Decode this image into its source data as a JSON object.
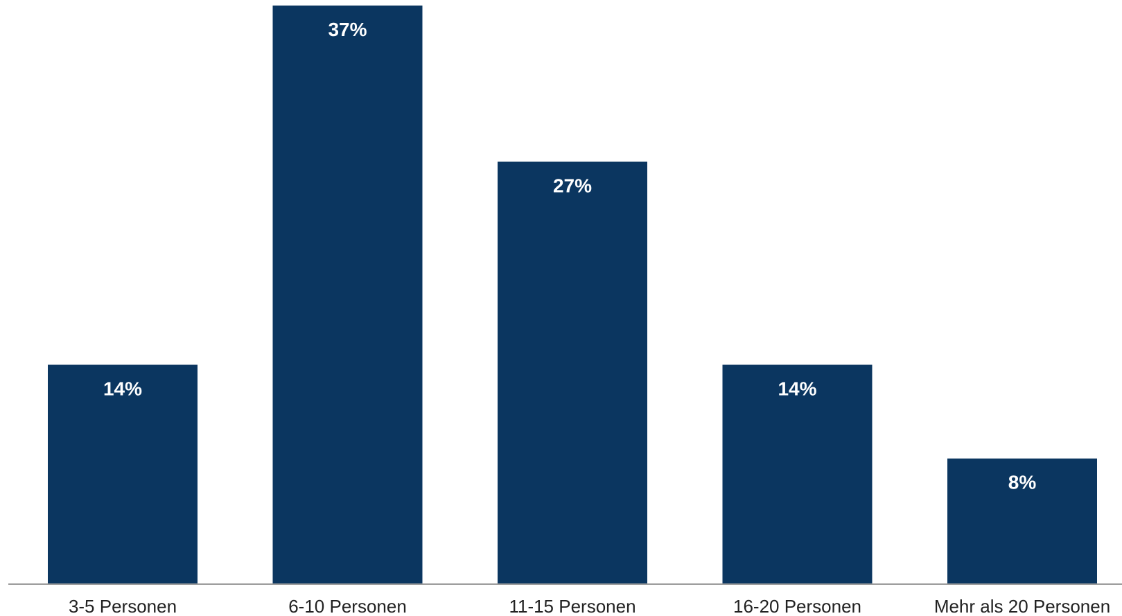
{
  "chart_data": {
    "type": "bar",
    "categories": [
      "3-5 Personen",
      "6-10 Personen",
      "11-15 Personen",
      "16-20 Personen",
      "Mehr als 20 Personen"
    ],
    "values": [
      14,
      37,
      27,
      14,
      8
    ],
    "data_labels": [
      "14%",
      "37%",
      "27%",
      "14%",
      "8%"
    ],
    "title": "",
    "xlabel": "",
    "ylabel": "",
    "ylim": [
      0,
      37
    ],
    "grid": false,
    "legend": "none",
    "colors": {
      "bar": "#0b3660",
      "value_label": "#ffffff",
      "axis": "#9a9a9a",
      "category_label": "#222222"
    }
  }
}
